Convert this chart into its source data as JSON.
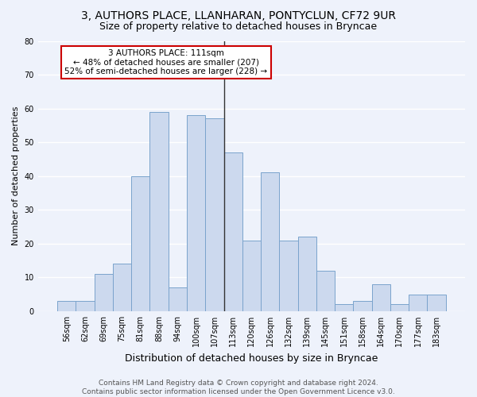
{
  "title1": "3, AUTHORS PLACE, LLANHARAN, PONTYCLUN, CF72 9UR",
  "title2": "Size of property relative to detached houses in Bryncae",
  "xlabel": "Distribution of detached houses by size in Bryncae",
  "ylabel": "Number of detached properties",
  "footer1": "Contains HM Land Registry data © Crown copyright and database right 2024.",
  "footer2": "Contains public sector information licensed under the Open Government Licence v3.0.",
  "annotation_line1": "3 AUTHORS PLACE: 111sqm",
  "annotation_line2": "← 48% of detached houses are smaller (207)",
  "annotation_line3": "52% of semi-detached houses are larger (228) →",
  "categories": [
    "56sqm",
    "62sqm",
    "69sqm",
    "75sqm",
    "81sqm",
    "88sqm",
    "94sqm",
    "100sqm",
    "107sqm",
    "113sqm",
    "120sqm",
    "126sqm",
    "132sqm",
    "139sqm",
    "145sqm",
    "151sqm",
    "158sqm",
    "164sqm",
    "170sqm",
    "177sqm",
    "183sqm"
  ],
  "values": [
    3,
    3,
    11,
    14,
    40,
    59,
    7,
    58,
    57,
    47,
    21,
    41,
    21,
    22,
    12,
    2,
    3,
    8,
    2,
    5,
    5
  ],
  "bar_color": "#ccd9ee",
  "bar_edge_color": "#7aa3cc",
  "vline_index": 9,
  "ylim": [
    0,
    80
  ],
  "yticks": [
    0,
    10,
    20,
    30,
    40,
    50,
    60,
    70,
    80
  ],
  "bg_color": "#eef2fb",
  "grid_color": "#ffffff",
  "annotation_box_color": "#ffffff",
  "annotation_box_edge": "#cc0000",
  "title1_fontsize": 10,
  "title2_fontsize": 9,
  "ylabel_fontsize": 8,
  "xlabel_fontsize": 9,
  "tick_fontsize": 7,
  "footer_fontsize": 6.5
}
